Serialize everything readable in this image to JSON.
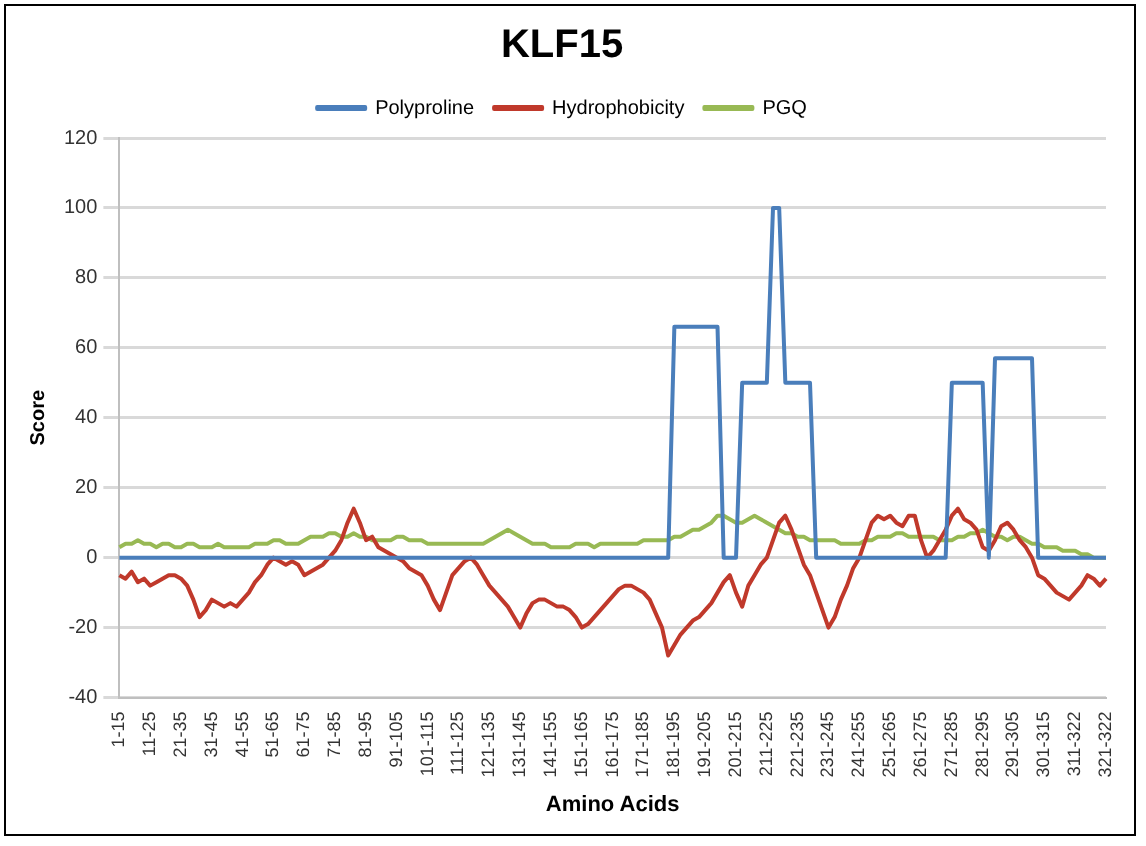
{
  "chart_data": {
    "type": "line",
    "title": "KLF15",
    "xlabel": "Amino Acids",
    "ylabel": "Score",
    "categories": [
      "1-15",
      null,
      null,
      null,
      null,
      "11-25",
      null,
      null,
      null,
      null,
      "21-35",
      null,
      null,
      null,
      null,
      "31-45",
      null,
      null,
      null,
      null,
      "41-55",
      null,
      null,
      null,
      null,
      "51-65",
      null,
      null,
      null,
      null,
      "61-75",
      null,
      null,
      null,
      null,
      "71-85",
      null,
      null,
      null,
      null,
      "81-95",
      null,
      null,
      null,
      null,
      "91-105",
      null,
      null,
      null,
      null,
      "101-115",
      null,
      null,
      null,
      null,
      "111-125",
      null,
      null,
      null,
      null,
      "121-135",
      null,
      null,
      null,
      null,
      "131-145",
      null,
      null,
      null,
      null,
      "141-155",
      null,
      null,
      null,
      null,
      "151-165",
      null,
      null,
      null,
      null,
      "161-175",
      null,
      null,
      null,
      null,
      "171-185",
      null,
      null,
      null,
      null,
      "181-195",
      null,
      null,
      null,
      null,
      "191-205",
      null,
      null,
      null,
      null,
      "201-215",
      null,
      null,
      null,
      null,
      "211-225",
      null,
      null,
      null,
      null,
      "221-235",
      null,
      null,
      null,
      null,
      "231-245",
      null,
      null,
      null,
      null,
      "241-255",
      null,
      null,
      null,
      null,
      "251-265",
      null,
      null,
      null,
      null,
      "261-275",
      null,
      null,
      null,
      null,
      "271-285",
      null,
      null,
      null,
      null,
      "281-295",
      null,
      null,
      null,
      null,
      "291-305",
      null,
      null,
      null,
      null,
      "301-315",
      null,
      null,
      null,
      null,
      "311-322",
      null,
      null,
      null,
      null,
      "321-322"
    ],
    "series": [
      {
        "name": "Polyproline",
        "color": "#4a7ebb",
        "values": [
          0,
          0,
          0,
          0,
          0,
          0,
          0,
          0,
          0,
          0,
          0,
          0,
          0,
          0,
          0,
          0,
          0,
          0,
          0,
          0,
          0,
          0,
          0,
          0,
          0,
          0,
          0,
          0,
          0,
          0,
          0,
          0,
          0,
          0,
          0,
          0,
          0,
          0,
          0,
          0,
          0,
          0,
          0,
          0,
          0,
          0,
          0,
          0,
          0,
          0,
          0,
          0,
          0,
          0,
          0,
          0,
          0,
          0,
          0,
          0,
          0,
          0,
          0,
          0,
          0,
          0,
          0,
          0,
          0,
          0,
          0,
          0,
          0,
          0,
          0,
          0,
          0,
          0,
          0,
          0,
          0,
          0,
          0,
          0,
          0,
          0,
          0,
          0,
          0,
          0,
          66,
          66,
          66,
          66,
          66,
          66,
          66,
          66,
          0,
          0,
          0,
          50,
          50,
          50,
          50,
          50,
          100,
          100,
          50,
          50,
          50,
          50,
          50,
          0,
          0,
          0,
          0,
          0,
          0,
          0,
          0,
          0,
          0,
          0,
          0,
          0,
          0,
          0,
          0,
          0,
          0,
          0,
          0,
          0,
          0,
          50,
          50,
          50,
          50,
          50,
          50,
          0,
          57,
          57,
          57,
          57,
          57,
          57,
          57,
          0,
          0,
          0,
          0,
          0,
          0,
          0,
          0,
          0,
          0,
          0,
          0
        ]
      },
      {
        "name": "Hydrophobicity",
        "color": "#c0392b",
        "values": [
          -5,
          -6,
          -4,
          -7,
          -6,
          -8,
          -7,
          -6,
          -5,
          -5,
          -6,
          -8,
          -12,
          -17,
          -15,
          -12,
          -13,
          -14,
          -13,
          -14,
          -12,
          -10,
          -7,
          -5,
          -2,
          0,
          -1,
          -2,
          -1,
          -2,
          -5,
          -4,
          -3,
          -2,
          0,
          2,
          5,
          10,
          14,
          10,
          5,
          6,
          3,
          2,
          1,
          0,
          -1,
          -3,
          -4,
          -5,
          -8,
          -12,
          -15,
          -10,
          -5,
          -3,
          -1,
          0,
          -2,
          -5,
          -8,
          -10,
          -12,
          -14,
          -17,
          -20,
          -16,
          -13,
          -12,
          -12,
          -13,
          -14,
          -14,
          -15,
          -17,
          -20,
          -19,
          -17,
          -15,
          -13,
          -11,
          -9,
          -8,
          -8,
          -9,
          -10,
          -12,
          -16,
          -20,
          -28,
          -25,
          -22,
          -20,
          -18,
          -17,
          -15,
          -13,
          -10,
          -7,
          -5,
          -10,
          -14,
          -8,
          -5,
          -2,
          0,
          5,
          10,
          12,
          8,
          3,
          -2,
          -5,
          -10,
          -15,
          -20,
          -17,
          -12,
          -8,
          -3,
          0,
          5,
          10,
          12,
          11,
          12,
          10,
          9,
          12,
          12,
          5,
          0,
          2,
          5,
          8,
          12,
          14,
          11,
          10,
          8,
          3,
          2,
          5,
          9,
          10,
          8,
          5,
          3,
          0,
          -5,
          -6,
          -8,
          -10,
          -11,
          -12,
          -10,
          -8,
          -5,
          -6,
          -8,
          -6
        ]
      },
      {
        "name": "PGQ",
        "color": "#98b954",
        "values": [
          3,
          4,
          4,
          5,
          4,
          4,
          3,
          4,
          4,
          3,
          3,
          4,
          4,
          3,
          3,
          3,
          4,
          3,
          3,
          3,
          3,
          3,
          4,
          4,
          4,
          5,
          5,
          4,
          4,
          4,
          5,
          6,
          6,
          6,
          7,
          7,
          6,
          6,
          7,
          6,
          6,
          5,
          5,
          5,
          5,
          6,
          6,
          5,
          5,
          5,
          4,
          4,
          4,
          4,
          4,
          4,
          4,
          4,
          4,
          4,
          5,
          6,
          7,
          8,
          7,
          6,
          5,
          4,
          4,
          4,
          3,
          3,
          3,
          3,
          4,
          4,
          4,
          3,
          4,
          4,
          4,
          4,
          4,
          4,
          4,
          5,
          5,
          5,
          5,
          5,
          6,
          6,
          7,
          8,
          8,
          9,
          10,
          12,
          12,
          11,
          10,
          10,
          11,
          12,
          11,
          10,
          9,
          8,
          7,
          7,
          6,
          6,
          5,
          5,
          5,
          5,
          5,
          4,
          4,
          4,
          4,
          5,
          5,
          6,
          6,
          6,
          7,
          7,
          6,
          6,
          6,
          6,
          6,
          5,
          5,
          5,
          6,
          6,
          7,
          7,
          8,
          7,
          6,
          6,
          5,
          6,
          6,
          5,
          4,
          4,
          3,
          3,
          3,
          2,
          2,
          2,
          1,
          1,
          0,
          0,
          0
        ]
      }
    ],
    "ylim": [
      -40,
      120
    ],
    "yticks": [
      -40,
      -20,
      0,
      20,
      40,
      60,
      80,
      100,
      120
    ],
    "grid": "y",
    "legend": "top",
    "marker": "none",
    "line_style": "solid"
  }
}
